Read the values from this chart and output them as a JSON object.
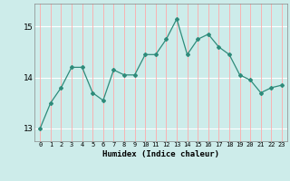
{
  "x": [
    0,
    1,
    2,
    3,
    4,
    5,
    6,
    7,
    8,
    9,
    10,
    11,
    12,
    13,
    14,
    15,
    16,
    17,
    18,
    19,
    20,
    21,
    22,
    23
  ],
  "y": [
    13.0,
    13.5,
    13.8,
    14.2,
    14.2,
    13.7,
    13.55,
    14.15,
    14.05,
    14.05,
    14.45,
    14.45,
    14.75,
    15.15,
    14.45,
    14.75,
    14.85,
    14.6,
    14.45,
    14.05,
    13.95,
    13.7,
    13.8,
    13.85
  ],
  "line_color": "#2e8b7a",
  "marker": "D",
  "marker_size": 2,
  "bg_color": "#cdecea",
  "grid_h_color": "#ffffff",
  "grid_v_color": "#ffaaaa",
  "xlabel": "Humidex (Indice chaleur)",
  "yticks": [
    13,
    14,
    15
  ],
  "xticks": [
    0,
    1,
    2,
    3,
    4,
    5,
    6,
    7,
    8,
    9,
    10,
    11,
    12,
    13,
    14,
    15,
    16,
    17,
    18,
    19,
    20,
    21,
    22,
    23
  ],
  "xlim": [
    -0.5,
    23.5
  ],
  "ylim": [
    12.75,
    15.45
  ]
}
